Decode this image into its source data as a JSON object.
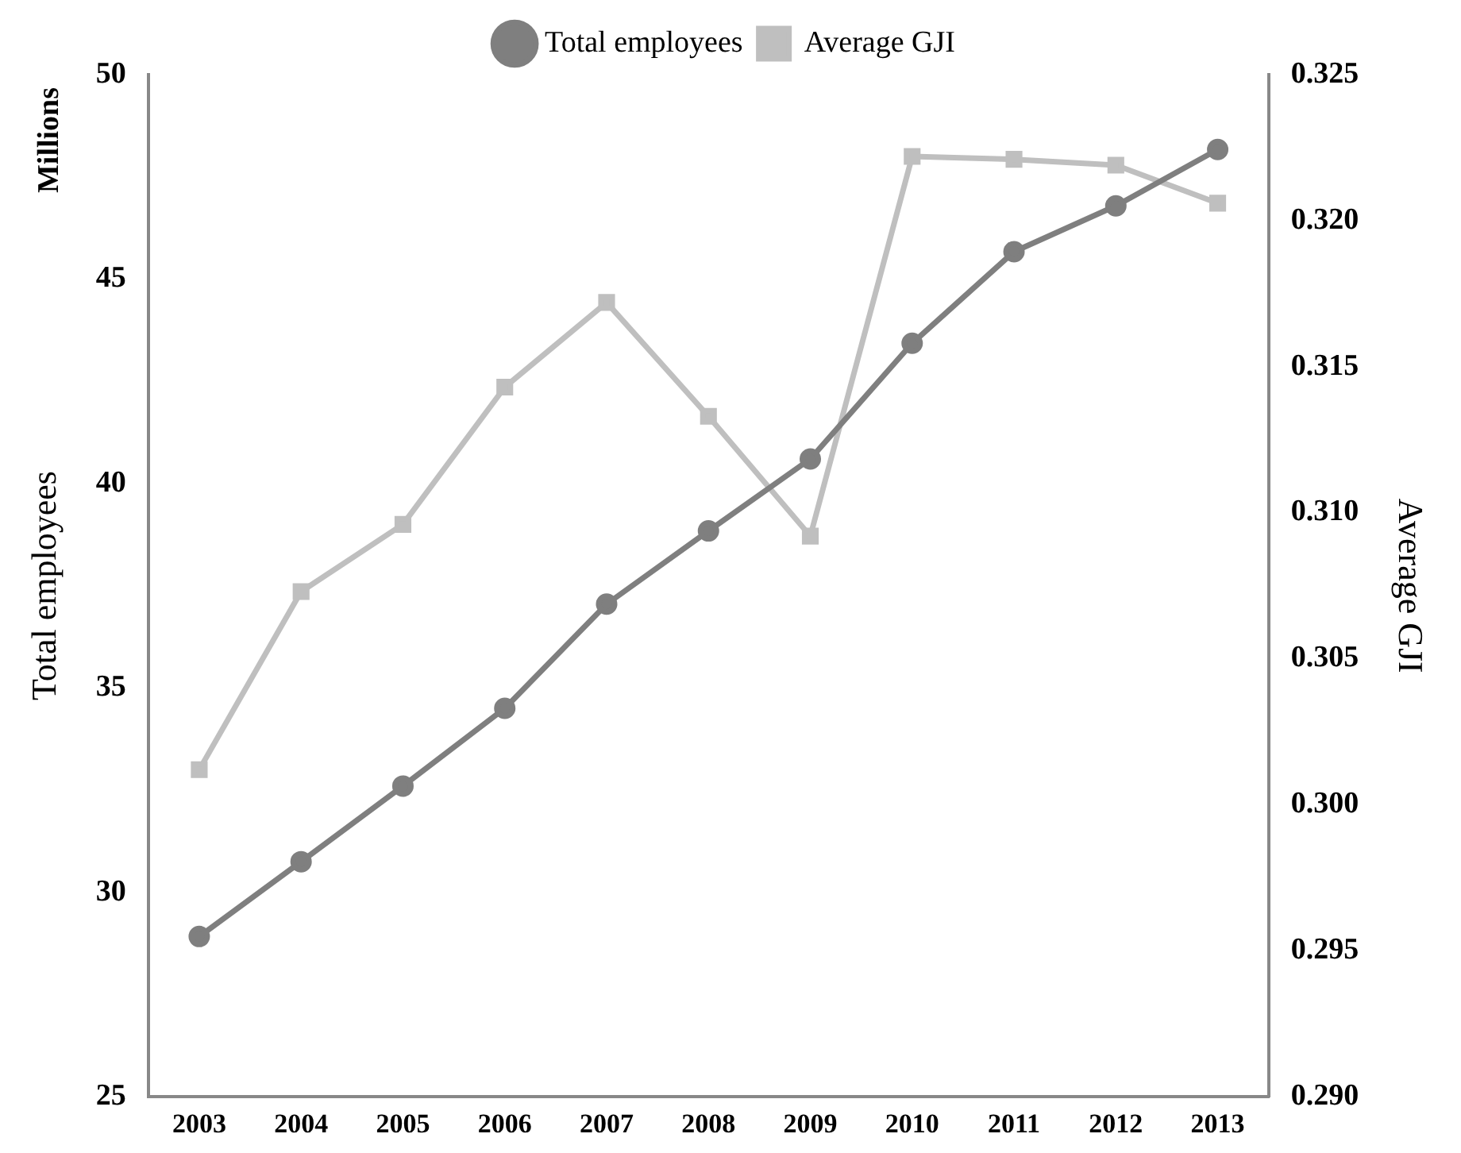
{
  "chart_data": {
    "type": "line",
    "categories": [
      "2003",
      "2004",
      "2005",
      "2006",
      "2007",
      "2008",
      "2009",
      "2010",
      "2011",
      "2012",
      "2013"
    ],
    "ylabel": "Total employees",
    "y2label": "Average GJI",
    "annotations": [
      "Millions"
    ],
    "series": [
      {
        "name": "Total employees",
        "color": "#7f7f7f",
        "marker": "circle",
        "values": [
          28.92,
          30.75,
          32.6,
          34.5,
          37.05,
          38.84,
          40.6,
          43.43,
          45.67,
          46.79,
          48.17
        ]
      },
      {
        "name": "Average GJI",
        "color": "#bfbfbf",
        "marker": "square",
        "axis": "y2",
        "values": [
          0.3012,
          0.3073,
          0.3096,
          0.3143,
          0.3172,
          0.3133,
          0.3092,
          0.3222,
          0.3221,
          0.3219,
          0.3206
        ]
      }
    ],
    "ylim": [
      25,
      50
    ],
    "yticks": [
      25,
      30,
      35,
      40,
      45,
      50
    ],
    "y2lim": [
      0.29,
      0.325
    ],
    "y2ticks": [
      {
        "value": 0.29,
        "label": "0.290"
      },
      {
        "value": 0.295,
        "label": "0.295"
      },
      {
        "value": 0.3,
        "label": "0.300"
      },
      {
        "value": 0.305,
        "label": "0.305"
      },
      {
        "value": 0.31,
        "label": "0.310"
      },
      {
        "value": 0.315,
        "label": "0.315"
      },
      {
        "value": 0.32,
        "label": "0.320"
      },
      {
        "value": 0.325,
        "label": "0.325"
      }
    ],
    "grid": false,
    "legend": "top",
    "line_style": "solid"
  }
}
